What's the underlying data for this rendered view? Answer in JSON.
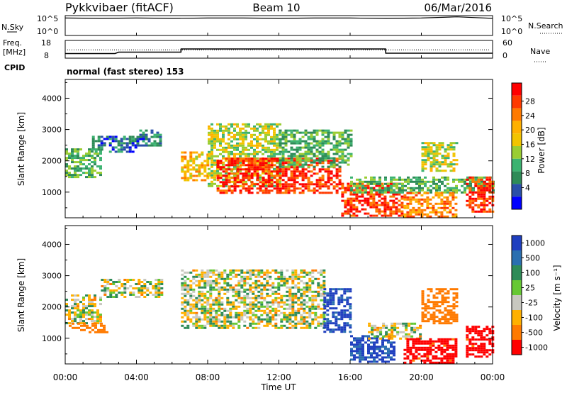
{
  "header": {
    "station": "Pykkvibaer (fitACF)",
    "beam": "Beam 10",
    "date": "06/Mar/2016"
  },
  "nsky_panel": {
    "left_label": "N.Sky",
    "left_ticks": [
      "10^5",
      "10^0"
    ],
    "right_label": "N.Search",
    "right_ticks": [
      "10^5",
      "10^0"
    ]
  },
  "freq_panel": {
    "left_label_1": "Freq.",
    "left_label_2": "[MHz]",
    "left_ticks": [
      "18",
      "8"
    ],
    "right_label": "Nave",
    "right_ticks": [
      "60",
      "0"
    ],
    "cpid_label": "CPID",
    "program": "normal (fast stereo) 153"
  },
  "power_panel": {
    "ylabel": "Slant Range [km]",
    "yticks": [
      "4000",
      "3000",
      "2000",
      "1000"
    ],
    "colorbar_label": "Power [dB]",
    "colorbar_ticks": [
      "28",
      "24",
      "20",
      "16",
      "12",
      "8",
      "4"
    ],
    "colors": [
      "#ff0000",
      "#ff3a00",
      "#ff7a00",
      "#ffb000",
      "#f2c400",
      "#9acd32",
      "#3cb371",
      "#2e8b57",
      "#2a4fa8",
      "#0000ff"
    ]
  },
  "velocity_panel": {
    "ylabel": "Slant Range [km]",
    "yticks": [
      "4000",
      "3000",
      "2000",
      "1000"
    ],
    "colorbar_label": "Velocity [m s⁻¹]",
    "colorbar_ticks": [
      "1000",
      "500",
      "100",
      "25",
      "-25",
      "-100",
      "-500",
      "-1000"
    ],
    "colors": [
      "#1f3fbf",
      "#2a6fb0",
      "#2e8b57",
      "#66c833",
      "#c8c8c0",
      "#ffb000",
      "#ff7a00",
      "#ff0000"
    ]
  },
  "xaxis": {
    "ticks": [
      "00:00",
      "04:00",
      "08:00",
      "12:00",
      "16:00",
      "20:00",
      "00:00"
    ],
    "label": "Time UT"
  },
  "chart_data": [
    {
      "type": "line",
      "title": "Pykkvibaer (fitACF)",
      "xlabel": "Time UT",
      "ylabel": "N.Sky",
      "yscale": "log",
      "ylim_exp": [
        0,
        5
      ],
      "x_hours": [
        0,
        2,
        4,
        6,
        8,
        10,
        12,
        14,
        16,
        18,
        20,
        22,
        24
      ],
      "series": [
        {
          "values_exp": [
            4.4,
            4.3,
            4.4,
            4.3,
            4.4,
            4.4,
            4.3,
            4.4,
            4.4,
            4.3,
            4.4,
            4.7,
            4.3
          ]
        }
      ]
    },
    {
      "type": "line",
      "ylabel": "Freq. [MHz]",
      "ylim": [
        8,
        18
      ],
      "x_hours": [
        0,
        2.8,
        3.0,
        6.5,
        6.51,
        17.99,
        18.0,
        24
      ],
      "series": [
        {
          "values": [
            10.6,
            10.6,
            11.4,
            11.4,
            13.2,
            13.2,
            10.8,
            10.8
          ]
        }
      ],
      "nave_dotted_value": 28
    },
    {
      "type": "heatmap",
      "title": "Power [dB]",
      "xlabel": "Time UT",
      "ylabel": "Slant Range [km]",
      "xlim_hours": [
        0,
        24
      ],
      "ylim_km": [
        180,
        4600
      ],
      "color_levels_db": [
        28,
        24,
        20,
        16,
        12,
        8,
        4
      ],
      "regions": [
        {
          "t0": 0.0,
          "t1": 2.0,
          "r0": 1500,
          "r1": 2400,
          "db": 12
        },
        {
          "t0": 1.5,
          "t1": 4.0,
          "r0": 2300,
          "r1": 2800,
          "db": 8
        },
        {
          "t0": 4.0,
          "t1": 5.3,
          "r0": 2500,
          "r1": 3000,
          "db": 8
        },
        {
          "t0": 6.5,
          "t1": 8.0,
          "r0": 1400,
          "r1": 2300,
          "db": 20
        },
        {
          "t0": 8.0,
          "t1": 12.0,
          "r0": 1200,
          "r1": 3200,
          "db": 16
        },
        {
          "t0": 8.5,
          "t1": 15.5,
          "r0": 1000,
          "r1": 2100,
          "db": 28
        },
        {
          "t0": 12.0,
          "t1": 16.0,
          "r0": 1800,
          "r1": 3000,
          "db": 12
        },
        {
          "t0": 15.5,
          "t1": 19.0,
          "r0": 250,
          "r1": 1300,
          "db": 28
        },
        {
          "t0": 16.0,
          "t1": 24.0,
          "r0": 1000,
          "r1": 1500,
          "db": 12
        },
        {
          "t0": 19.0,
          "t1": 22.0,
          "r0": 250,
          "r1": 1000,
          "db": 24
        },
        {
          "t0": 20.0,
          "t1": 22.0,
          "r0": 1700,
          "r1": 2600,
          "db": 16
        },
        {
          "t0": 22.5,
          "t1": 24.0,
          "r0": 400,
          "r1": 1500,
          "db": 28
        }
      ]
    },
    {
      "type": "heatmap",
      "title": "Velocity [m s⁻¹]",
      "xlabel": "Time UT",
      "ylabel": "Slant Range [km]",
      "xlim_hours": [
        0,
        24
      ],
      "ylim_km": [
        180,
        4600
      ],
      "color_levels_ms": [
        1000,
        500,
        100,
        25,
        -25,
        -100,
        -500,
        -1000
      ],
      "regions": [
        {
          "t0": 0.0,
          "t1": 2.0,
          "r0": 1500,
          "r1": 2400,
          "v": 0
        },
        {
          "t0": 0.2,
          "t1": 2.4,
          "r0": 1200,
          "r1": 1500,
          "v": -300
        },
        {
          "t0": 2.0,
          "t1": 5.5,
          "r0": 2300,
          "r1": 2900,
          "v": 0
        },
        {
          "t0": 6.5,
          "t1": 14.5,
          "r0": 1300,
          "r1": 3200,
          "v": 0
        },
        {
          "t0": 14.5,
          "t1": 16.0,
          "r0": 1200,
          "r1": 2600,
          "v": 800
        },
        {
          "t0": 16.0,
          "t1": 18.5,
          "r0": 250,
          "r1": 1100,
          "v": 800
        },
        {
          "t0": 17.0,
          "t1": 20.0,
          "r0": 1000,
          "r1": 1500,
          "v": 0
        },
        {
          "t0": 19.0,
          "t1": 22.0,
          "r0": 250,
          "r1": 1000,
          "v": -600
        },
        {
          "t0": 20.0,
          "t1": 22.0,
          "r0": 1500,
          "r1": 2600,
          "v": -300
        },
        {
          "t0": 22.5,
          "t1": 24.0,
          "r0": 400,
          "r1": 1400,
          "v": -600
        }
      ]
    }
  ]
}
